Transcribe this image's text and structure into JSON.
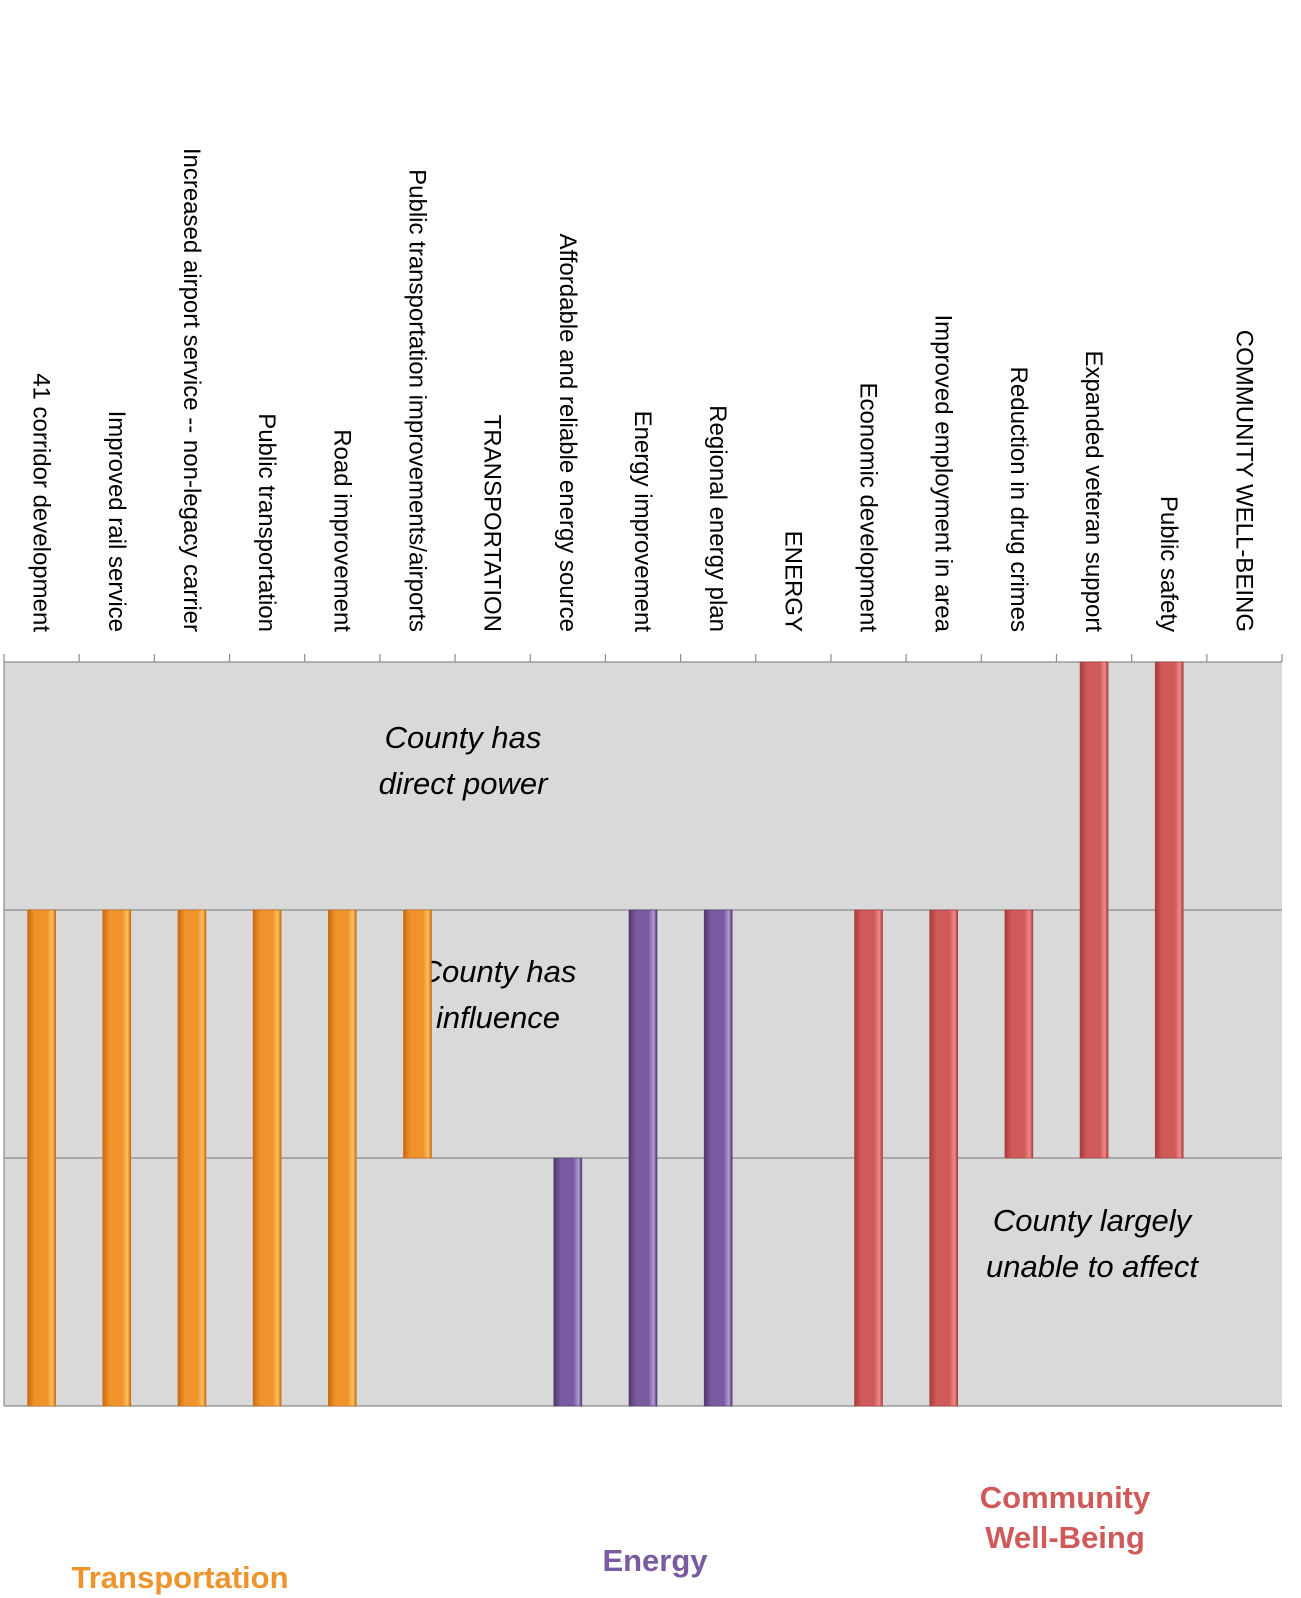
{
  "chart_data": {
    "type": "bar",
    "categories": [
      "41 corridor development",
      "Improved rail service",
      "Increased airport service -- non-legacy carrier",
      "Public transportation",
      "Road improvement",
      "Public transportation improvements/airports",
      "TRANSPORTATION",
      "Affordable and reliable energy source",
      "Energy improvement",
      "Regional energy plan",
      "ENERGY",
      "Economic development",
      "Improved employment in area",
      "Reduction in drug crimes",
      "Expanded veteran support",
      "Public safety",
      "COMMUNITY WELL-BEING"
    ],
    "ranges": [
      [
        0,
        2
      ],
      [
        0,
        2
      ],
      [
        0,
        2
      ],
      [
        0,
        2
      ],
      [
        0,
        2
      ],
      [
        1,
        2
      ],
      null,
      [
        0,
        1
      ],
      [
        0,
        2
      ],
      [
        0,
        2
      ],
      null,
      [
        0,
        2
      ],
      [
        0,
        2
      ],
      [
        1,
        2
      ],
      [
        1,
        3
      ],
      [
        1,
        3
      ],
      null
    ],
    "groups": [
      "transportation",
      "transportation",
      "transportation",
      "transportation",
      "transportation",
      "transportation",
      "transportation",
      "energy",
      "energy",
      "energy",
      "energy",
      "community",
      "community",
      "community",
      "community",
      "community",
      "community"
    ],
    "ylim": [
      0,
      3
    ],
    "grid": true,
    "zones": [
      {
        "lines": [
          "County has",
          "direct power"
        ],
        "level": 3
      },
      {
        "lines": [
          "County has",
          "influence"
        ],
        "level": 2
      },
      {
        "lines": [
          "County largely",
          "unable to affect"
        ],
        "level": 1
      }
    ],
    "legend": [
      {
        "key": "transportation",
        "label": "Transportation",
        "color": "#f0932b"
      },
      {
        "key": "energy",
        "label": "Energy",
        "color": "#7a5aa0"
      },
      {
        "key": "community",
        "label": "Community\nWell-Being",
        "color": "#d05a5a"
      }
    ],
    "colors": {
      "transportation": {
        "light": "#ffc060",
        "mid": "#f0932b",
        "dark": "#c86a10"
      },
      "energy": {
        "light": "#b39ad8",
        "mid": "#7a5aa0",
        "dark": "#50386e"
      },
      "community": {
        "light": "#ef8a8a",
        "mid": "#d05a5a",
        "dark": "#a83c3c"
      }
    },
    "background": "#d9d9d9"
  }
}
